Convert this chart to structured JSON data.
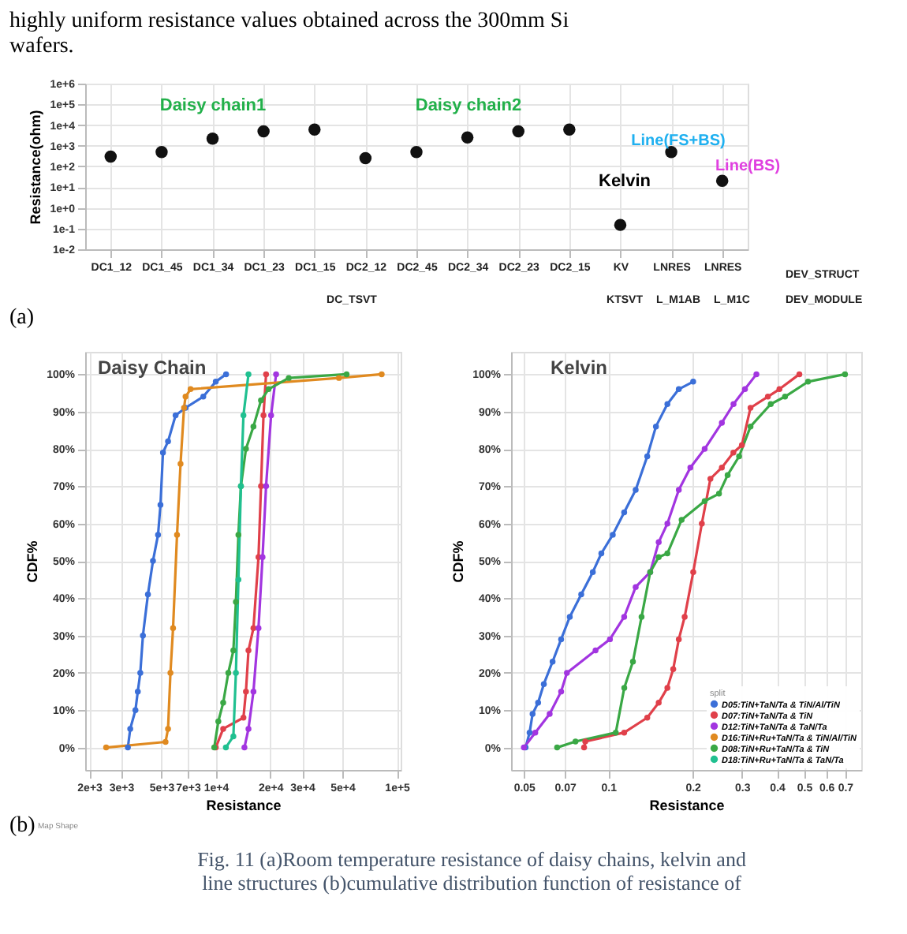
{
  "chart_data": [
    {
      "type": "scatter",
      "categories": [
        "DC1_12",
        "DC1_45",
        "DC1_34",
        "DC1_23",
        "DC1_15",
        "DC2_12",
        "DC2_45",
        "DC2_34",
        "DC2_23",
        "DC2_15",
        "KV",
        "LNRES",
        "LNRES"
      ],
      "values": [
        300,
        500,
        2200,
        5000,
        6000,
        250,
        500,
        2500,
        5000,
        6000,
        0.15,
        500,
        20
      ],
      "color": "#111111",
      "marker": "circle",
      "ylabel": "Resistance(ohm)",
      "log": "y",
      "ylim": [
        0.01,
        1000000
      ],
      "yticks": [
        {
          "value": 0.01,
          "label": "1e-2"
        },
        {
          "value": 0.1,
          "label": "1e-1"
        },
        {
          "value": 1,
          "label": "1e+0"
        },
        {
          "value": 10,
          "label": "1e+1"
        },
        {
          "value": 100,
          "label": "1e+2"
        },
        {
          "value": 1000,
          "label": "1e+3"
        },
        {
          "value": 10000,
          "label": "1e+4"
        },
        {
          "value": 100000,
          "label": "1e+5"
        },
        {
          "value": 1000000,
          "label": "1e+6"
        }
      ],
      "grid": true,
      "annotations": [
        "Daisy chain1",
        "Daisy chain2",
        "Kelvin",
        "Line(FS+BS)",
        "Line(BS)",
        "DEV_STRUCT",
        "DC_TSVT",
        "KTSVT",
        "L_M1AB",
        "L_M1C",
        "DEV_MODULE",
        "(a)",
        "highly uniform resistance values obtained across the 300mm Si wafers."
      ]
    },
    {
      "type": "line",
      "title": "Daisy Chain",
      "xlabel": "Resistance",
      "ylabel": "CDF%",
      "log": "x",
      "xlim": [
        1900,
        105000
      ],
      "xticks": [
        {
          "value": 2000,
          "label": "2e+3"
        },
        {
          "value": 3000,
          "label": "3e+3"
        },
        {
          "value": 5000,
          "label": "5e+3"
        },
        {
          "value": 7000,
          "label": "7e+3"
        },
        {
          "value": 10000,
          "label": "1e+4"
        },
        {
          "value": 20000,
          "label": "2e+4"
        },
        {
          "value": 30000,
          "label": "3e+4"
        },
        {
          "value": 50000,
          "label": "5e+4"
        },
        {
          "value": 100000,
          "label": "1e+5"
        }
      ],
      "ylim": [
        -6,
        106
      ],
      "yticks": [
        {
          "value": 0,
          "label": "0%"
        },
        {
          "value": 10,
          "label": "10%"
        },
        {
          "value": 20,
          "label": "20%"
        },
        {
          "value": 30,
          "label": "30%"
        },
        {
          "value": 40,
          "label": "40%"
        },
        {
          "value": 50,
          "label": "50%"
        },
        {
          "value": 60,
          "label": "60%"
        },
        {
          "value": 70,
          "label": "70%"
        },
        {
          "value": 80,
          "label": "80%"
        },
        {
          "value": 90,
          "label": "90%"
        },
        {
          "value": 100,
          "label": "100%"
        }
      ],
      "grid": true,
      "legend": false,
      "marker": "circle",
      "line_style": "solid",
      "series": [
        {
          "color": "#3b6fd8",
          "x": [
            3270,
            3370,
            3600,
            3710,
            3830,
            3960,
            4220,
            4500,
            4800,
            4950,
            5110,
            5450,
            6000,
            6810,
            8530,
            10000,
            11400
          ],
          "values": [
            0,
            5,
            10,
            15,
            20,
            30,
            41,
            50,
            57,
            65,
            79,
            82,
            89,
            91,
            94,
            98,
            100
          ]
        },
        {
          "color": "#e0404a",
          "x": [
            10000,
            10990,
            14220,
            14680,
            15160,
            16150,
            17220,
            17780,
            18350,
            18960
          ],
          "values": [
            0,
            5,
            8,
            15,
            26,
            32,
            51,
            70,
            89,
            100
          ]
        },
        {
          "color": "#a235e0",
          "x": [
            14400,
            15160,
            16150,
            17220,
            18130,
            18960,
            20210,
            21540
          ],
          "values": [
            0,
            5,
            15,
            32,
            51,
            70,
            89,
            100
          ]
        },
        {
          "color": "#e08a20",
          "x": [
            2480,
            5280,
            5450,
            5620,
            5810,
            6110,
            6390,
            6680,
            6810,
            7260,
            47900,
            82500
          ],
          "values": [
            0,
            1.5,
            5,
            20,
            32,
            57,
            76,
            91,
            94,
            96,
            99,
            100
          ]
        },
        {
          "color": "#3aa845",
          "x": [
            9810,
            10330,
            10990,
            11730,
            12510,
            12920,
            13340,
            13770,
            14680,
            16150,
            17780,
            19570,
            25300,
            52800
          ],
          "values": [
            0,
            7,
            12,
            20,
            26,
            39,
            57,
            70,
            80,
            86,
            93,
            96,
            99,
            100
          ]
        },
        {
          "color": "#20c090",
          "x": [
            11370,
            12510,
            12920,
            13340,
            13770,
            14220,
            15160
          ],
          "values": [
            0,
            3,
            20,
            45,
            70,
            89,
            100
          ]
        }
      ],
      "annotations": [
        "Map Shape",
        "(b)",
        "Fig.  11    (a)Room temperature resistance of daisy chains, kelvin and line structures (b)cumulative distribution function of resistance of"
      ]
    },
    {
      "type": "line",
      "title": "Kelvin",
      "xlabel": "Resistance",
      "ylabel": "CDF%",
      "log": "x",
      "xlim": [
        0.045,
        0.8
      ],
      "xticks": [
        0.05,
        0.07,
        0.1,
        0.2,
        0.3,
        0.4,
        0.5,
        0.6,
        0.7
      ],
      "ylim": [
        -6,
        106
      ],
      "yticks": [
        {
          "value": 0,
          "label": "0%"
        },
        {
          "value": 10,
          "label": "10%"
        },
        {
          "value": 20,
          "label": "20%"
        },
        {
          "value": 30,
          "label": "30%"
        },
        {
          "value": 40,
          "label": "40%"
        },
        {
          "value": 50,
          "label": "50%"
        },
        {
          "value": 60,
          "label": "60%"
        },
        {
          "value": 70,
          "label": "70%"
        },
        {
          "value": 80,
          "label": "80%"
        },
        {
          "value": 90,
          "label": "90%"
        },
        {
          "value": 100,
          "label": "100%"
        }
      ],
      "grid": true,
      "legend": "bottom right",
      "legend_title": "split",
      "marker": "circle",
      "line_style": "solid",
      "series": [
        {
          "name": "D05:TiN+TaN/Ta & TiN/Al/TiN",
          "color": "#3b6fd8",
          "x": [
            0.0507,
            0.0524,
            0.0537,
            0.0562,
            0.0589,
            0.0633,
            0.0679,
            0.0729,
            0.0801,
            0.0881,
            0.0945,
            0.1038,
            0.114,
            0.1253,
            0.1378,
            0.148,
            0.1626,
            0.1786,
            0.201
          ],
          "values": [
            0,
            4,
            9,
            12,
            17,
            23,
            29,
            35,
            41,
            47,
            52,
            57,
            63,
            69,
            78,
            86,
            92,
            96,
            98
          ]
        },
        {
          "name": "D07:TiN+TaN/Ta & TiN",
          "color": "#e0404a",
          "x": [
            0.082,
            0.0828,
            0.114,
            0.1378,
            0.1514,
            0.1626,
            0.1706,
            0.1786,
            0.1874,
            0.2011,
            0.2158,
            0.2316,
            0.2544,
            0.2797,
            0.2999,
            0.322,
            0.3714,
            0.4084,
            0.4811
          ],
          "values": [
            0,
            1.6,
            4,
            8,
            12,
            16,
            21,
            29,
            35,
            47,
            60,
            72,
            75,
            79,
            81,
            91,
            94,
            96,
            100
          ]
        },
        {
          "name": "D12:TiN+TaN/Ta & TaN/Ta",
          "color": "#a235e0",
          "x": [
            0.05,
            0.0549,
            0.0618,
            0.0679,
            0.0712,
            0.0901,
            0.1014,
            0.114,
            0.1253,
            0.1412,
            0.1514,
            0.1626,
            0.1786,
            0.1964,
            0.2209,
            0.2544,
            0.28,
            0.3076,
            0.338
          ],
          "values": [
            0,
            4,
            9,
            15,
            20,
            26,
            29,
            35,
            43,
            47,
            55,
            60,
            69,
            75,
            80,
            87,
            92,
            96,
            100
          ]
        },
        {
          "name": "D16:TiN+Ru+TaN/Ta & TiN/Al/TiN",
          "color": "#e08a20"
        },
        {
          "name": "D08:TiN+Ru+TaN/Ta & TiN",
          "color": "#3aa845",
          "x": [
            0.0657,
            0.0764,
            0.1064,
            0.1141,
            0.1225,
            0.1315,
            0.1412,
            0.1514,
            0.1626,
            0.1828,
            0.2209,
            0.2485,
            0.2668,
            0.2932,
            0.322,
            0.3802,
            0.4276,
            0.5166,
            0.7
          ],
          "values": [
            0,
            1.6,
            4,
            16,
            23,
            35,
            47,
            51,
            52,
            61,
            66,
            68,
            73,
            78,
            86,
            92,
            94,
            98,
            100
          ]
        },
        {
          "name": "D18:TiN+Ru+TaN/Ta & TaN/Ta",
          "color": "#20c090"
        }
      ]
    }
  ]
}
